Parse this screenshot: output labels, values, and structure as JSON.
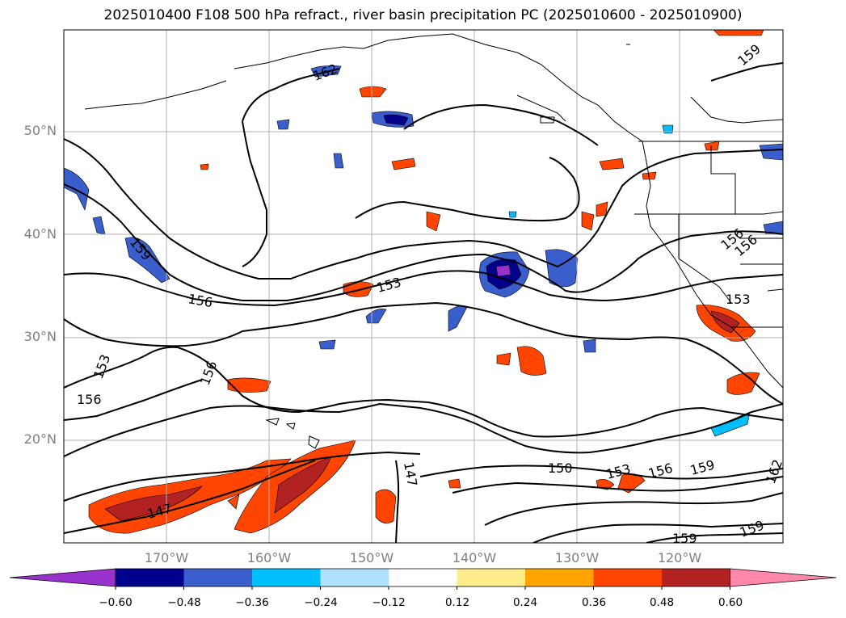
{
  "title": "2025010400 F108 500 hPa refract., river basin precipitation PC (2025010600 - 2025010900)",
  "lat_labels": [
    "50°N",
    "40°N",
    "30°N",
    "20°N"
  ],
  "lon_labels": [
    "170°W",
    "160°W",
    "150°W",
    "140°W",
    "130°W",
    "120°W"
  ],
  "contour_labels": [
    "162",
    "159",
    "156",
    "153",
    "156",
    "153",
    "156",
    "156",
    "153",
    "150",
    "153",
    "156",
    "159",
    "147",
    "147",
    "159",
    "159",
    "159",
    "156",
    "162"
  ],
  "colorbar": {
    "ticks": [
      "−0.60",
      "−0.48",
      "−0.36",
      "−0.24",
      "−0.12",
      "0.12",
      "0.24",
      "0.36",
      "0.48",
      "0.60"
    ],
    "colors": [
      "#9932cc",
      "#00008b",
      "#3a5fcd",
      "#00bfff",
      "#b0e2ff",
      "#ffffff",
      "#ffec8b",
      "#ffa500",
      "#ff4500",
      "#b22222",
      "#ff88aa"
    ]
  },
  "colors": {
    "coast": "#000000",
    "grid": "#b0b0b0",
    "axis_label": "#808080"
  }
}
